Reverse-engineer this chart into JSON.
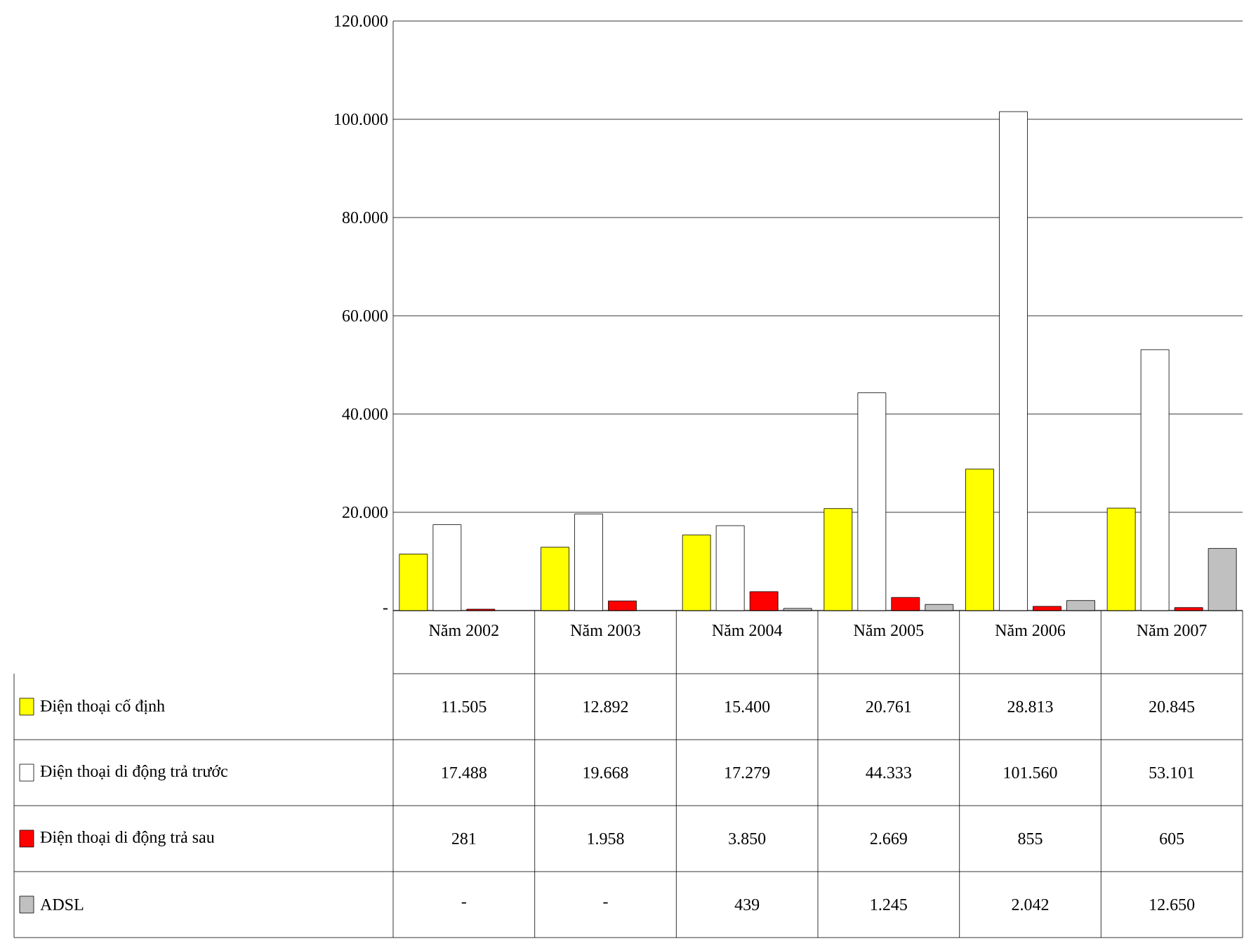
{
  "chart_data": {
    "type": "bar",
    "categories": [
      "Năm 2002",
      "Năm 2003",
      "Năm 2004",
      "Năm 2005",
      "Năm 2006",
      "Năm 2007"
    ],
    "series": [
      {
        "name": "Điện thoại cố định",
        "color": "#ffff00",
        "values": [
          11505,
          12892,
          15400,
          20761,
          28813,
          20845
        ],
        "value_labels": [
          "11.505",
          "12.892",
          "15.400",
          "20.761",
          "28.813",
          "20.845"
        ]
      },
      {
        "name": "Điện thoại di động trả trước",
        "color": "#ffffff",
        "values": [
          17488,
          19668,
          17279,
          44333,
          101560,
          53101
        ],
        "value_labels": [
          "17.488",
          "19.668",
          "17.279",
          "44.333",
          "101.560",
          "53.101"
        ]
      },
      {
        "name": "Điện thoại di động trả sau",
        "color": "#ff0000",
        "values": [
          281,
          1958,
          3850,
          2669,
          855,
          605
        ],
        "value_labels": [
          "281",
          "1.958",
          "3.850",
          "2.669",
          "855",
          "605"
        ]
      },
      {
        "name": "ADSL",
        "color": "#c0c0c0",
        "values": [
          null,
          null,
          439,
          1245,
          2042,
          12650
        ],
        "value_labels": [
          "-",
          "-",
          "439",
          "1.245",
          "2.042",
          "12.650"
        ]
      }
    ],
    "ylim": [
      0,
      120000
    ],
    "yticks": [
      {
        "value": 0,
        "label": "-"
      },
      {
        "value": 20000,
        "label": "20.000"
      },
      {
        "value": 40000,
        "label": "40.000"
      },
      {
        "value": 60000,
        "label": "60.000"
      },
      {
        "value": 80000,
        "label": "80.000"
      },
      {
        "value": 100000,
        "label": "100.000"
      },
      {
        "value": 120000,
        "label": "120.000"
      }
    ],
    "grid": "y",
    "legend": "bottom left"
  }
}
